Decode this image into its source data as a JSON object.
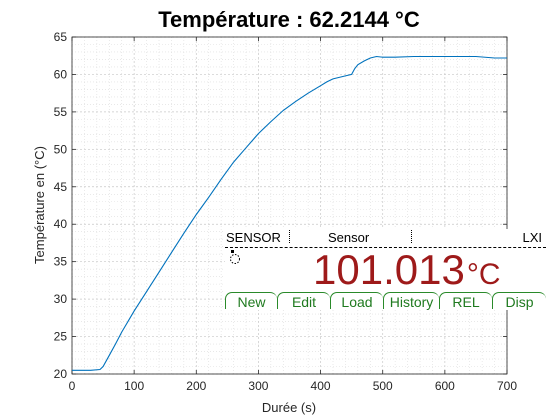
{
  "chart_data": {
    "type": "line",
    "title": "Température : 62.2144 °C",
    "xlabel": "Durée (s)",
    "ylabel": "Température en (°C)",
    "xlim": [
      0,
      700
    ],
    "ylim": [
      20,
      65
    ],
    "xticks": [
      0,
      100,
      200,
      300,
      400,
      500,
      600,
      700
    ],
    "yticks": [
      20,
      25,
      30,
      35,
      40,
      45,
      50,
      55,
      60,
      65
    ],
    "grid": true,
    "minor_grid": true,
    "line_color": "#0072BD",
    "series": [
      {
        "x": [
          0,
          30,
          45,
          50,
          60,
          70,
          80,
          100,
          120,
          140,
          160,
          180,
          200,
          220,
          240,
          260,
          280,
          300,
          320,
          340,
          350,
          360,
          380,
          400,
          410,
          420,
          430,
          440,
          450,
          455,
          460,
          470,
          480,
          490,
          500,
          520,
          550,
          600,
          650,
          680,
          700
        ],
        "y": [
          20.5,
          20.5,
          20.6,
          21.0,
          22.5,
          24.0,
          25.6,
          28.4,
          31.0,
          33.6,
          36.2,
          38.8,
          41.3,
          43.6,
          46.0,
          48.3,
          50.2,
          52.1,
          53.7,
          55.2,
          55.8,
          56.4,
          57.5,
          58.5,
          59.0,
          59.4,
          59.6,
          59.8,
          60.0,
          60.8,
          61.3,
          61.8,
          62.2,
          62.4,
          62.3,
          62.3,
          62.4,
          62.4,
          62.4,
          62.2,
          62.2
        ]
      }
    ]
  },
  "meter": {
    "sensor_label": "SENSOR",
    "sensor_value": "Sensor",
    "lxi": "LXI",
    "reading": "101.013",
    "unit": "°C",
    "reading_color": "#9e1a1a",
    "softkey_color": "#1f7a1f",
    "softkeys": [
      "New",
      "Edit",
      "Load",
      "History",
      "REL",
      "Disp"
    ]
  }
}
